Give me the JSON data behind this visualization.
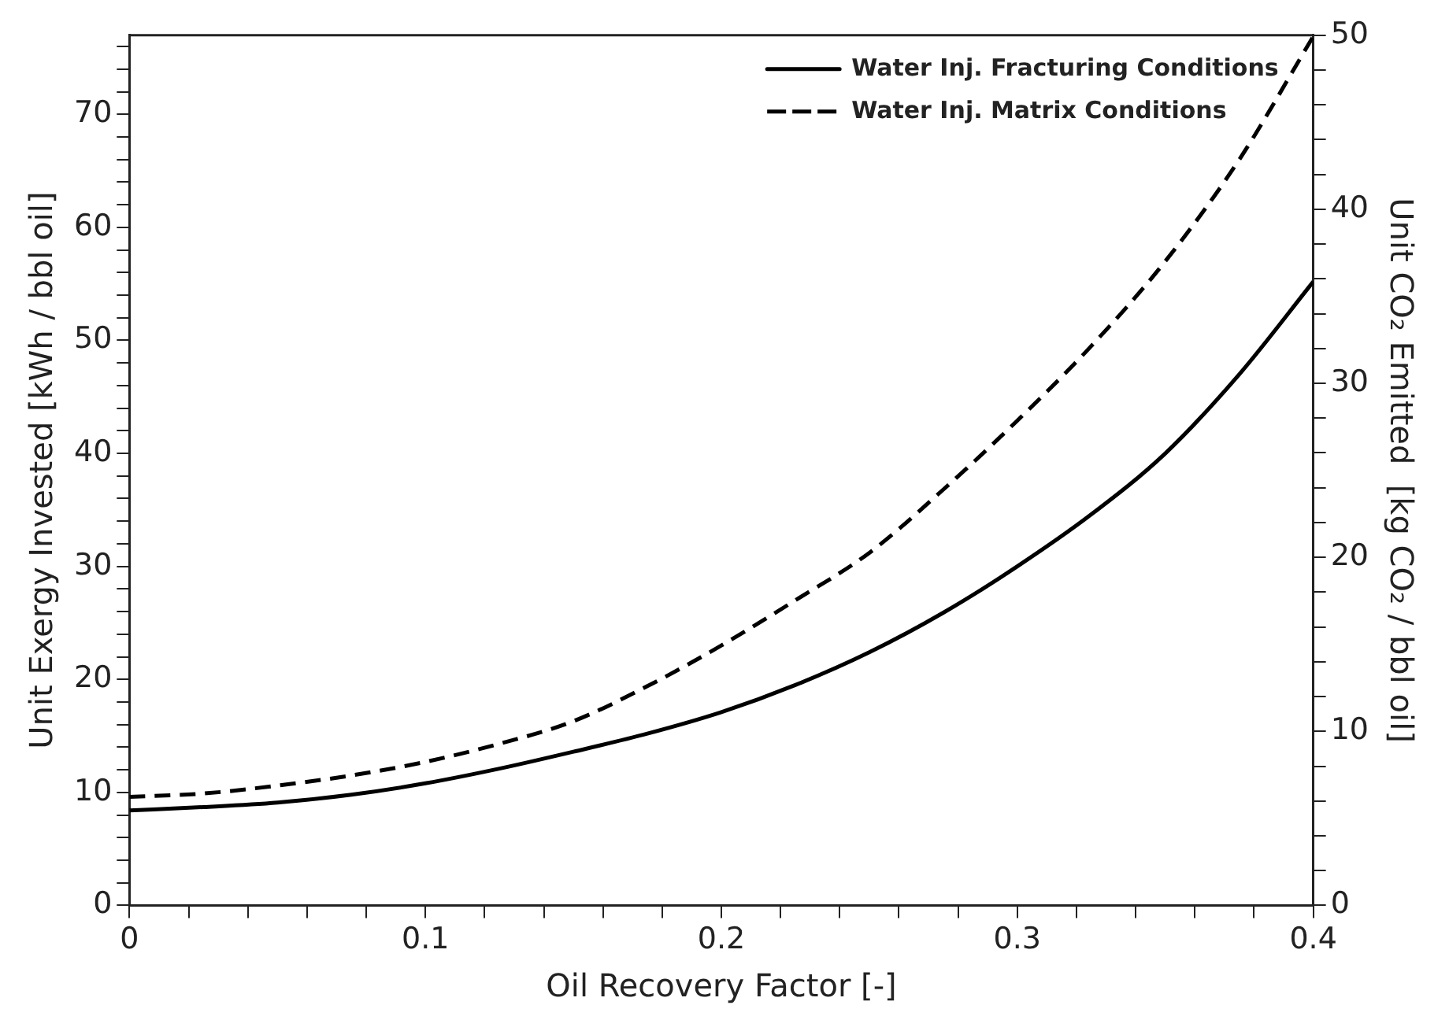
{
  "chart_data": {
    "type": "line",
    "xlabel": "Oil Recovery Factor [-]",
    "ylabel": "Unit Exergy Invested [kWh / bbl oil]",
    "y2label": "Unit CO₂ Emitted  [kg CO₂ / bbl oil]",
    "x": [
      0,
      0.025,
      0.05,
      0.075,
      0.1,
      0.125,
      0.15,
      0.175,
      0.2,
      0.225,
      0.25,
      0.275,
      0.3,
      0.325,
      0.35,
      0.375,
      0.4
    ],
    "series": [
      {
        "name": "Water Inj. Fracturing Conditions",
        "color": "#000000",
        "line_style": "solid",
        "values": [
          8.4,
          8.7,
          9.1,
          9.8,
          10.8,
          12.1,
          13.6,
          15.2,
          17.1,
          19.5,
          22.4,
          25.9,
          30.0,
          34.6,
          40.0,
          47.0,
          55.2
        ]
      },
      {
        "name": "Water Inj. Matrix Conditions",
        "color": "#000000",
        "line_style": "dashed",
        "values": [
          9.6,
          9.9,
          10.6,
          11.5,
          12.7,
          14.3,
          16.3,
          19.4,
          23.0,
          27.0,
          31.2,
          36.8,
          42.9,
          49.5,
          57.0,
          66.0,
          76.9
        ]
      }
    ],
    "xlim": [
      0,
      0.4
    ],
    "xticks": [
      0,
      {
        "value": 0.02,
        "label": null
      },
      {
        "value": 0.04,
        "label": null
      },
      {
        "value": 0.06,
        "label": null
      },
      {
        "value": 0.08,
        "label": null
      },
      0.1,
      {
        "value": 0.12,
        "label": null
      },
      {
        "value": 0.14,
        "label": null
      },
      {
        "value": 0.16,
        "label": null
      },
      {
        "value": 0.18,
        "label": null
      },
      0.2,
      {
        "value": 0.22,
        "label": null
      },
      {
        "value": 0.24,
        "label": null
      },
      {
        "value": 0.26,
        "label": null
      },
      {
        "value": 0.28,
        "label": null
      },
      0.3,
      {
        "value": 0.32,
        "label": null
      },
      {
        "value": 0.34,
        "label": null
      },
      {
        "value": 0.36,
        "label": null
      },
      {
        "value": 0.38,
        "label": null
      },
      0.4
    ],
    "ylim": [
      0,
      77
    ],
    "yticks": [
      0,
      {
        "value": 2,
        "label": null
      },
      {
        "value": 4,
        "label": null
      },
      {
        "value": 6,
        "label": null
      },
      {
        "value": 8,
        "label": null
      },
      10,
      {
        "value": 12,
        "label": null
      },
      {
        "value": 14,
        "label": null
      },
      {
        "value": 16,
        "label": null
      },
      {
        "value": 18,
        "label": null
      },
      20,
      {
        "value": 22,
        "label": null
      },
      {
        "value": 24,
        "label": null
      },
      {
        "value": 26,
        "label": null
      },
      {
        "value": 28,
        "label": null
      },
      30,
      {
        "value": 32,
        "label": null
      },
      {
        "value": 34,
        "label": null
      },
      {
        "value": 36,
        "label": null
      },
      {
        "value": 38,
        "label": null
      },
      40,
      {
        "value": 42,
        "label": null
      },
      {
        "value": 44,
        "label": null
      },
      {
        "value": 46,
        "label": null
      },
      {
        "value": 48,
        "label": null
      },
      50,
      {
        "value": 52,
        "label": null
      },
      {
        "value": 54,
        "label": null
      },
      {
        "value": 56,
        "label": null
      },
      {
        "value": 58,
        "label": null
      },
      60,
      {
        "value": 62,
        "label": null
      },
      {
        "value": 64,
        "label": null
      },
      {
        "value": 66,
        "label": null
      },
      {
        "value": 68,
        "label": null
      },
      70,
      {
        "value": 72,
        "label": null
      },
      {
        "value": 74,
        "label": null
      },
      {
        "value": 76,
        "label": null
      }
    ],
    "y2lim": [
      0,
      50
    ],
    "y2ticks": [
      0,
      {
        "value": 2,
        "label": null
      },
      {
        "value": 4,
        "label": null
      },
      {
        "value": 6,
        "label": null
      },
      {
        "value": 8,
        "label": null
      },
      10,
      {
        "value": 12,
        "label": null
      },
      {
        "value": 14,
        "label": null
      },
      {
        "value": 16,
        "label": null
      },
      {
        "value": 18,
        "label": null
      },
      20,
      {
        "value": 22,
        "label": null
      },
      {
        "value": 24,
        "label": null
      },
      {
        "value": 26,
        "label": null
      },
      {
        "value": 28,
        "label": null
      },
      30,
      {
        "value": 32,
        "label": null
      },
      {
        "value": 34,
        "label": null
      },
      {
        "value": 36,
        "label": null
      },
      {
        "value": 38,
        "label": null
      },
      40,
      {
        "value": 42,
        "label": null
      },
      {
        "value": 44,
        "label": null
      },
      {
        "value": 46,
        "label": null
      },
      {
        "value": 48,
        "label": null
      },
      50
    ],
    "grid": false,
    "legend": "top right",
    "marker": "none"
  }
}
